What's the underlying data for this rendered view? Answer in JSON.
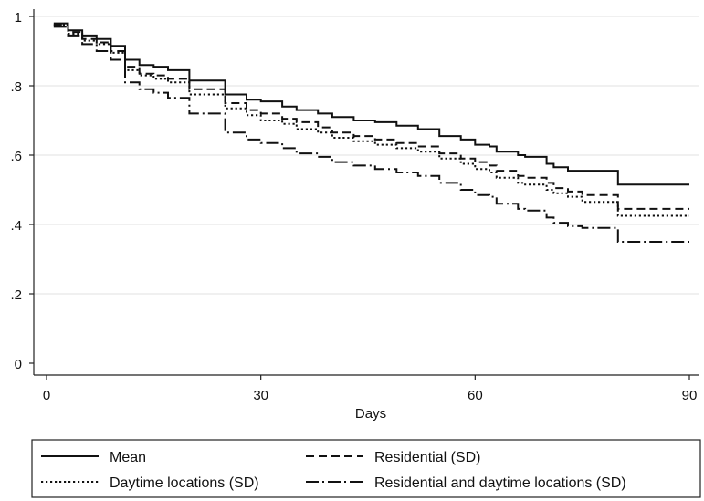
{
  "chart_data": {
    "type": "line",
    "title": "",
    "xlabel": "Days",
    "ylabel": "",
    "xlim": [
      0,
      90
    ],
    "ylim": [
      0,
      1
    ],
    "x_ticks": [
      0,
      30,
      60,
      90
    ],
    "x_tick_labels": [
      "0",
      "30",
      "60",
      "90"
    ],
    "y_ticks": [
      0,
      0.2,
      0.4,
      0.6,
      0.8,
      1
    ],
    "y_tick_labels": [
      "0",
      ".2",
      ".4",
      ".6",
      ".8",
      "1"
    ],
    "grid": "horizontal",
    "legend_placement": "bottom",
    "series": [
      {
        "name": "Mean",
        "style": "solid",
        "color": "#111111",
        "x": [
          1,
          3,
          5,
          7,
          9,
          11,
          13,
          15,
          17,
          20,
          25,
          28,
          30,
          33,
          35,
          38,
          40,
          43,
          46,
          49,
          52,
          55,
          58,
          60,
          62,
          63,
          66,
          67,
          70,
          71,
          73,
          75,
          77,
          80,
          80,
          83,
          86,
          90
        ],
        "y": [
          0.98,
          0.96,
          0.945,
          0.935,
          0.915,
          0.875,
          0.86,
          0.855,
          0.845,
          0.815,
          0.775,
          0.76,
          0.755,
          0.74,
          0.73,
          0.72,
          0.71,
          0.7,
          0.695,
          0.685,
          0.675,
          0.655,
          0.645,
          0.63,
          0.625,
          0.61,
          0.6,
          0.595,
          0.575,
          0.565,
          0.555,
          0.555,
          0.555,
          0.555,
          0.515,
          0.515,
          0.515,
          0.515
        ]
      },
      {
        "name": "Residential (SD)",
        "style": "dashed",
        "color": "#111111",
        "x": [
          1,
          3,
          5,
          7,
          9,
          11,
          13,
          15,
          17,
          20,
          25,
          28,
          30,
          33,
          35,
          38,
          40,
          43,
          46,
          49,
          52,
          55,
          58,
          60,
          62,
          63,
          66,
          67,
          70,
          71,
          73,
          75,
          77,
          80,
          80,
          83,
          86,
          90
        ],
        "y": [
          0.975,
          0.955,
          0.935,
          0.925,
          0.9,
          0.855,
          0.835,
          0.83,
          0.82,
          0.79,
          0.75,
          0.73,
          0.72,
          0.705,
          0.695,
          0.68,
          0.665,
          0.655,
          0.645,
          0.635,
          0.625,
          0.605,
          0.59,
          0.58,
          0.57,
          0.555,
          0.54,
          0.535,
          0.52,
          0.505,
          0.495,
          0.485,
          0.485,
          0.485,
          0.445,
          0.445,
          0.445,
          0.445
        ]
      },
      {
        "name": "Daytime locations (SD)",
        "style": "dotted",
        "color": "#111111",
        "x": [
          1,
          3,
          5,
          7,
          9,
          11,
          13,
          15,
          17,
          20,
          25,
          28,
          30,
          33,
          35,
          38,
          40,
          43,
          46,
          49,
          52,
          55,
          58,
          60,
          62,
          63,
          66,
          67,
          70,
          71,
          73,
          75,
          77,
          80,
          80,
          83,
          86,
          90
        ],
        "y": [
          0.975,
          0.95,
          0.93,
          0.92,
          0.895,
          0.845,
          0.83,
          0.82,
          0.81,
          0.775,
          0.735,
          0.715,
          0.7,
          0.69,
          0.675,
          0.665,
          0.65,
          0.64,
          0.63,
          0.62,
          0.61,
          0.59,
          0.575,
          0.56,
          0.55,
          0.535,
          0.52,
          0.515,
          0.5,
          0.49,
          0.48,
          0.465,
          0.465,
          0.465,
          0.425,
          0.425,
          0.425,
          0.425
        ]
      },
      {
        "name": "Residential and daytime locations (SD)",
        "style": "dash-dot",
        "color": "#111111",
        "x": [
          1,
          3,
          5,
          7,
          9,
          11,
          13,
          15,
          17,
          20,
          25,
          28,
          30,
          33,
          35,
          38,
          40,
          43,
          46,
          49,
          52,
          55,
          58,
          60,
          62,
          63,
          66,
          67,
          70,
          71,
          73,
          75,
          77,
          80,
          80,
          83,
          86,
          90
        ],
        "y": [
          0.97,
          0.945,
          0.92,
          0.9,
          0.875,
          0.81,
          0.79,
          0.78,
          0.765,
          0.72,
          0.665,
          0.645,
          0.635,
          0.62,
          0.605,
          0.595,
          0.58,
          0.57,
          0.56,
          0.55,
          0.54,
          0.52,
          0.5,
          0.485,
          0.48,
          0.46,
          0.445,
          0.44,
          0.42,
          0.405,
          0.395,
          0.39,
          0.39,
          0.39,
          0.35,
          0.35,
          0.35,
          0.35
        ]
      }
    ]
  }
}
